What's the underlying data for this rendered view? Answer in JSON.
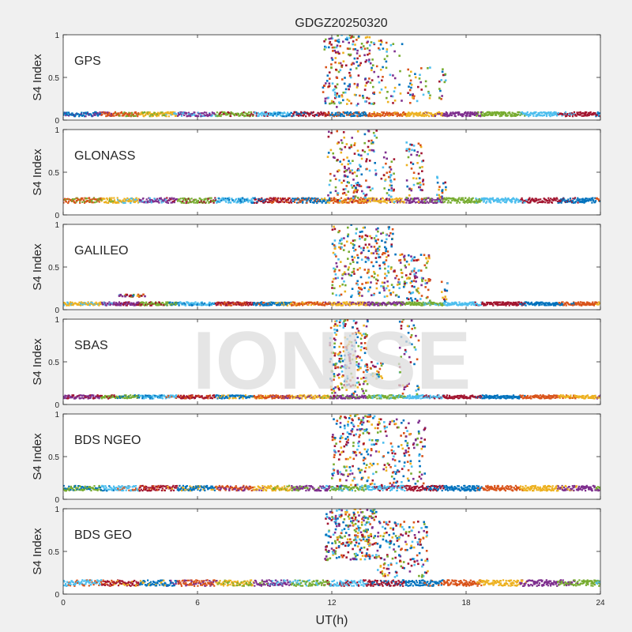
{
  "figure": {
    "title": "GDGZ20250320",
    "xlabel": "UT(h)",
    "watermark": "IONISE"
  },
  "chart_data": {
    "type": "scatter",
    "x_ticks": [
      "0",
      "6",
      "12",
      "18",
      "24"
    ],
    "x_tick_values": [
      0,
      6,
      12,
      18,
      24
    ],
    "xlim": [
      0,
      24
    ],
    "ylim": [
      0,
      1
    ],
    "y_ticks": [
      "0",
      "0.5",
      "1"
    ],
    "y_tick_values": [
      0,
      0.5,
      1
    ],
    "ylabel": "S4 Index",
    "series_colors": [
      "#0072BD",
      "#D95319",
      "#EDB120",
      "#7E2F8E",
      "#77AC30",
      "#4DBEEE",
      "#A2142F"
    ],
    "panels": [
      {
        "label": "GPS",
        "baseline": 0.07,
        "noise": 0.025,
        "bursts": [
          {
            "t0": 11.6,
            "t1": 13.9,
            "lo": 0.15,
            "hi": 1.0,
            "n": 220
          },
          {
            "t0": 14.0,
            "t1": 15.2,
            "lo": 0.2,
            "hi": 0.95,
            "n": 45
          },
          {
            "t0": 15.4,
            "t1": 16.4,
            "lo": 0.2,
            "hi": 0.65,
            "n": 35
          },
          {
            "t0": 16.8,
            "t1": 17.1,
            "lo": 0.2,
            "hi": 0.6,
            "n": 15
          }
        ]
      },
      {
        "label": "GLONASS",
        "baseline": 0.17,
        "noise": 0.03,
        "bursts": [
          {
            "t0": 11.8,
            "t1": 14.0,
            "lo": 0.15,
            "hi": 1.0,
            "n": 170
          },
          {
            "t0": 14.2,
            "t1": 14.8,
            "lo": 0.15,
            "hi": 0.75,
            "n": 40
          },
          {
            "t0": 15.3,
            "t1": 16.1,
            "lo": 0.15,
            "hi": 0.85,
            "n": 60
          },
          {
            "t0": 16.7,
            "t1": 17.1,
            "lo": 0.15,
            "hi": 0.45,
            "n": 20
          }
        ]
      },
      {
        "label": "GALILEO",
        "baseline": 0.07,
        "noise": 0.02,
        "bursts": [
          {
            "t0": 2.5,
            "t1": 3.7,
            "lo": 0.15,
            "hi": 0.18,
            "n": 25
          },
          {
            "t0": 12.0,
            "t1": 14.8,
            "lo": 0.15,
            "hi": 1.0,
            "n": 260
          },
          {
            "t0": 14.8,
            "t1": 16.4,
            "lo": 0.1,
            "hi": 0.65,
            "n": 120
          },
          {
            "t0": 16.9,
            "t1": 17.2,
            "lo": 0.1,
            "hi": 0.35,
            "n": 12
          }
        ]
      },
      {
        "label": "SBAS",
        "baseline": 0.09,
        "noise": 0.02,
        "bursts": [
          {
            "t0": 11.9,
            "t1": 13.6,
            "lo": 0.1,
            "hi": 1.0,
            "n": 220
          },
          {
            "t0": 13.7,
            "t1": 14.3,
            "lo": 0.3,
            "hi": 0.5,
            "n": 25
          },
          {
            "t0": 15.0,
            "t1": 15.9,
            "lo": 0.1,
            "hi": 1.0,
            "n": 50
          }
        ]
      },
      {
        "label": "BDS NGEO",
        "baseline": 0.13,
        "noise": 0.03,
        "bursts": [
          {
            "t0": 12.0,
            "t1": 14.0,
            "lo": 0.15,
            "hi": 1.0,
            "n": 200
          },
          {
            "t0": 14.0,
            "t1": 16.2,
            "lo": 0.15,
            "hi": 0.95,
            "n": 140
          }
        ]
      },
      {
        "label": "BDS GEO",
        "baseline": 0.13,
        "noise": 0.035,
        "bursts": [
          {
            "t0": 11.7,
            "t1": 14.0,
            "lo": 0.4,
            "hi": 1.0,
            "n": 280
          },
          {
            "t0": 14.0,
            "t1": 16.3,
            "lo": 0.2,
            "hi": 0.85,
            "n": 170
          }
        ]
      }
    ]
  }
}
